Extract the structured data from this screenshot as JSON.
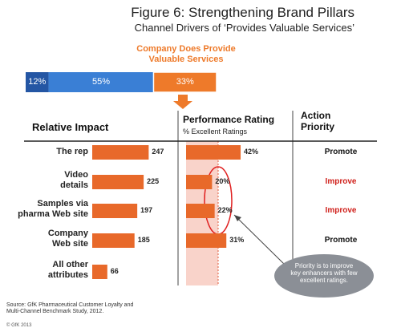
{
  "title": "Figure 6: Strengthening Brand Pillars",
  "subtitle": "Channel Drivers of ‘Provides Valuable Services’",
  "chart_data": [
    {
      "type": "stacked-bar",
      "title": "Company Does Provide\nValuable Services",
      "values": [
        12,
        55,
        33
      ],
      "value_labels": [
        "12%",
        "55%",
        "33%"
      ],
      "colors": [
        "#2456a4",
        "#3a7fd5",
        "#ee7a2a"
      ]
    },
    {
      "type": "bar",
      "title": "Relative Impact",
      "categories": [
        "The rep",
        "Video\ndetails",
        "Samples via\npharma Web site",
        "Company\nWeb site",
        "All other\nattributes"
      ],
      "values": [
        247,
        225,
        197,
        185,
        66
      ],
      "color": "#e8692a"
    },
    {
      "type": "bar",
      "title": "Performance Rating",
      "subtitle": "% Excellent Ratings",
      "values": [
        42,
        20,
        22,
        31
      ],
      "value_labels": [
        "42%",
        "20%",
        "22%",
        "31%"
      ],
      "color": "#e8692a"
    }
  ],
  "action_priority": {
    "title": "Action\nPriority",
    "items": [
      {
        "label": "Promote",
        "color": "#111111"
      },
      {
        "label": "Improve",
        "color": "#d0211c"
      },
      {
        "label": "Improve",
        "color": "#d0211c"
      },
      {
        "label": "Promote",
        "color": "#111111"
      }
    ]
  },
  "callout": "Priority is to improve\nkey enhancers with few\nexcellent ratings.",
  "source": "Source: GfK Pharmaceutical Customer Loyalty and\nMulti-Channel Benchmark Study, 2012.",
  "copyright": "© GfK 2013"
}
